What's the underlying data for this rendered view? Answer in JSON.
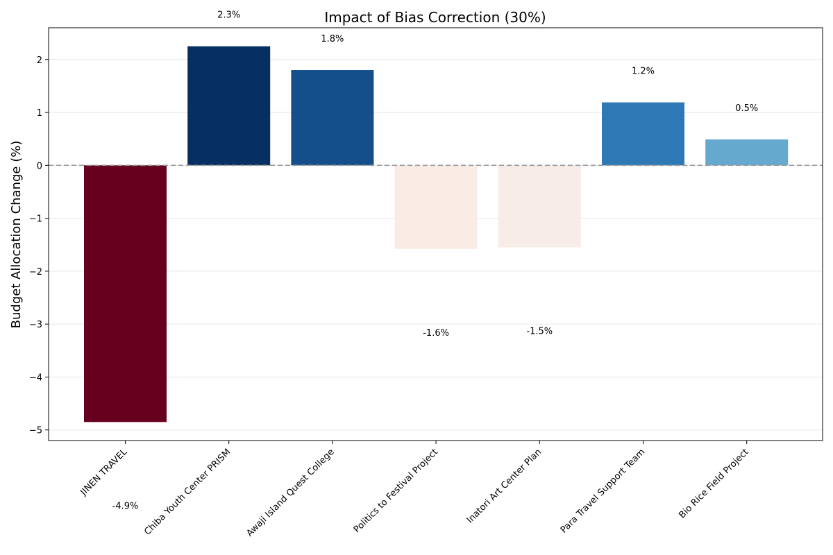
{
  "chart_data": {
    "type": "bar",
    "title": "Impact of Bias Correction (30%)",
    "xlabel": "",
    "ylabel": "Budget Allocation Change (%)",
    "categories": [
      "JINEN TRAVEL",
      "Chiba Youth Center PRISM",
      "Awaji Island Quest College",
      "Politics to Festival Project",
      "Inatori Art Center Plan",
      "Para Travel Support Team",
      "Bio Rice Field Project"
    ],
    "values": [
      -4.85,
      2.25,
      1.8,
      -1.58,
      -1.55,
      1.19,
      0.49
    ],
    "data_labels": [
      "-4.9%",
      "2.3%",
      "1.8%",
      "-1.6%",
      "-1.5%",
      "1.2%",
      "0.5%"
    ],
    "bar_colors": [
      "#67001f",
      "#053061",
      "#154f8b",
      "#f8ece4",
      "#f7ece8",
      "#2e79b5",
      "#65a9cf"
    ],
    "ylim": [
      -5.2,
      2.6
    ],
    "yticks": [
      2,
      1,
      0,
      -1,
      -2,
      -3,
      -4,
      -5
    ],
    "ytick_labels": [
      "2",
      "1",
      "0",
      "−1",
      "−2",
      "−3",
      "−4",
      "−5"
    ],
    "grid": true,
    "zero_line": true,
    "legend": "none"
  }
}
